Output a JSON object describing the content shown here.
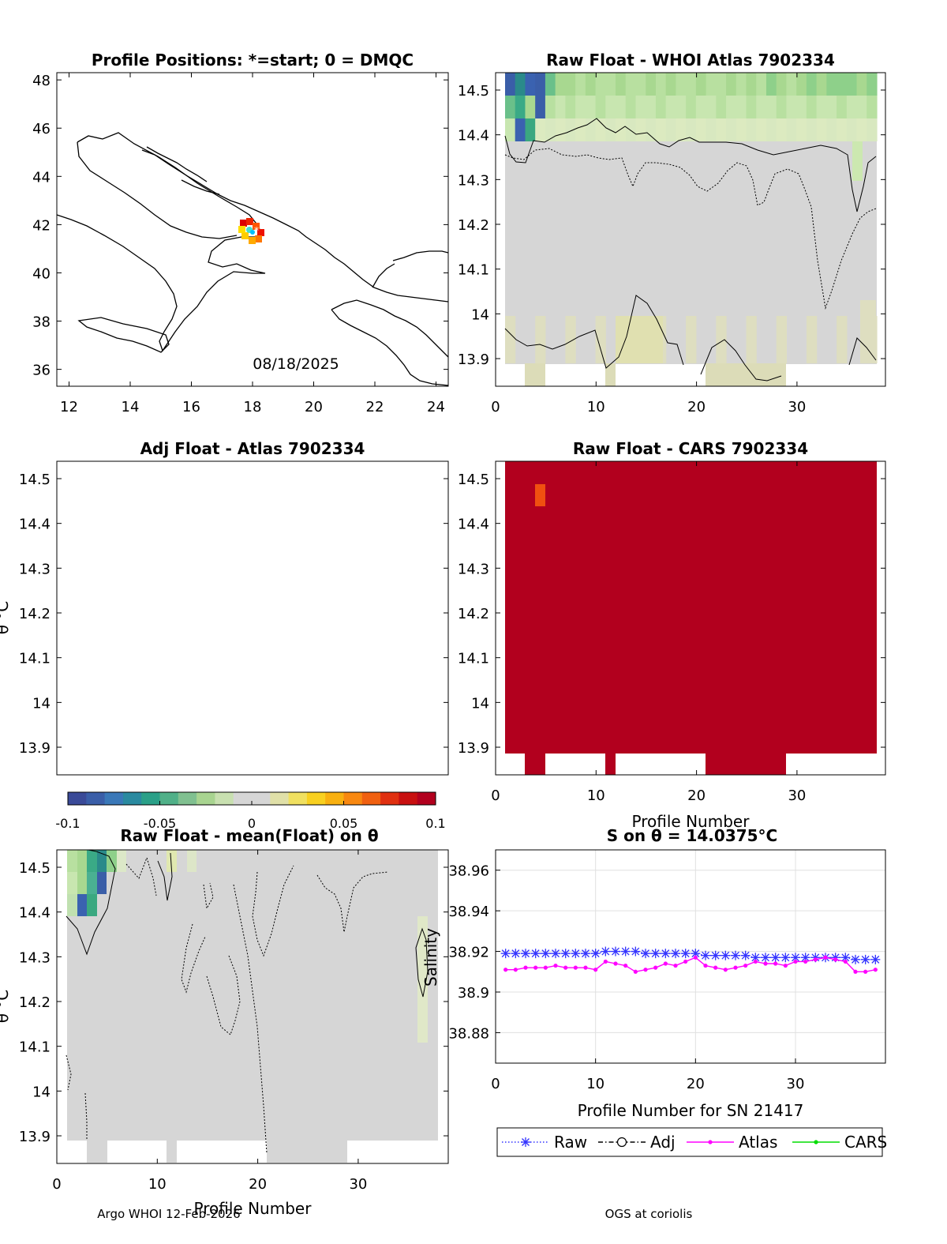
{
  "titles": {
    "map": "Profile Positions: *=start; 0 = DMQC",
    "atlas": "Raw Float - WHOI Atlas  7902334",
    "adj": "Adj Float - Atlas  7902334",
    "cars": "Raw Float - CARS  7902334",
    "mean": "Raw Float - mean(Float) on θ",
    "salt": "S on θ = 14.0375°C"
  },
  "map": {
    "date_label": "08/18/2025",
    "xticks": [
      "12",
      "14",
      "16",
      "18",
      "20",
      "22",
      "24"
    ],
    "yticks": [
      "48",
      "46",
      "44",
      "42",
      "40",
      "38",
      "36"
    ],
    "xlim": [
      11.6,
      24.4
    ],
    "ylim": [
      35.3,
      48.3
    ]
  },
  "theta_ticks": [
    "14.5",
    "14.4",
    "14.3",
    "14.2",
    "14.1",
    "14",
    "13.9"
  ],
  "theta_label": "θ °C",
  "profile_ticks": [
    "0",
    "10",
    "20",
    "30"
  ],
  "xlabel_profile": "Profile Number",
  "colorbar": {
    "ticks": [
      "-0.1",
      "-0.05",
      "0",
      "0.05",
      "0.1"
    ],
    "range": [
      -0.1,
      0.1
    ]
  },
  "chart_data": {
    "type": "line",
    "title": "S on θ = 14.0375°C",
    "xlabel": "Profile Number for SN 21417",
    "ylabel": "Salinity",
    "xlim": [
      0,
      39
    ],
    "ylim": [
      38.865,
      38.97
    ],
    "yticks": [
      "38.96",
      "38.94",
      "38.92",
      "38.9",
      "38.88"
    ],
    "grid": true,
    "legend": "bottom",
    "series": [
      {
        "name": "Raw",
        "color": "#3333ff",
        "marker": "asterisk",
        "line": "dotted",
        "x": [
          1,
          2,
          3,
          4,
          5,
          6,
          7,
          8,
          9,
          10,
          11,
          12,
          13,
          14,
          15,
          16,
          17,
          18,
          19,
          20,
          21,
          22,
          23,
          24,
          25,
          26,
          27,
          28,
          29,
          30,
          31,
          32,
          33,
          34,
          35,
          36,
          37,
          38
        ],
        "values": [
          38.919,
          38.919,
          38.919,
          38.919,
          38.919,
          38.919,
          38.919,
          38.919,
          38.919,
          38.919,
          38.92,
          38.92,
          38.92,
          38.92,
          38.919,
          38.919,
          38.919,
          38.919,
          38.919,
          38.919,
          38.918,
          38.918,
          38.918,
          38.918,
          38.918,
          38.917,
          38.917,
          38.917,
          38.917,
          38.917,
          38.917,
          38.917,
          38.917,
          38.917,
          38.917,
          38.916,
          38.916,
          38.916
        ]
      },
      {
        "name": "Adj",
        "color": "#000000",
        "marker": "circle",
        "line": "dashdot",
        "x": [],
        "values": []
      },
      {
        "name": "Atlas",
        "color": "#ff00ff",
        "marker": "dot",
        "line": "solid",
        "x": [
          1,
          2,
          3,
          4,
          5,
          6,
          7,
          8,
          9,
          10,
          11,
          12,
          13,
          14,
          15,
          16,
          17,
          18,
          19,
          20,
          21,
          22,
          23,
          24,
          25,
          26,
          27,
          28,
          29,
          30,
          31,
          32,
          33,
          34,
          35,
          36,
          37,
          38
        ],
        "values": [
          38.911,
          38.911,
          38.912,
          38.912,
          38.912,
          38.913,
          38.912,
          38.912,
          38.912,
          38.911,
          38.915,
          38.914,
          38.913,
          38.91,
          38.911,
          38.912,
          38.914,
          38.913,
          38.915,
          38.917,
          38.913,
          38.912,
          38.911,
          38.912,
          38.913,
          38.915,
          38.914,
          38.914,
          38.913,
          38.915,
          38.915,
          38.916,
          38.917,
          38.916,
          38.915,
          38.91,
          38.91,
          38.911
        ]
      },
      {
        "name": "CARS",
        "color": "#00dd00",
        "marker": "dot",
        "line": "solid",
        "x": [],
        "values": []
      }
    ]
  },
  "footer": {
    "left": "Argo WHOI 12-Feb-2026",
    "right": "OGS at coriolis"
  }
}
